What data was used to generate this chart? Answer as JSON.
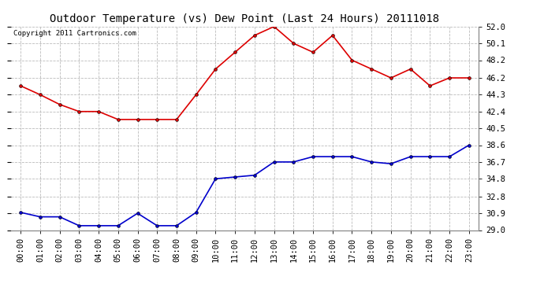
{
  "title": "Outdoor Temperature (vs) Dew Point (Last 24 Hours) 20111018",
  "copyright_text": "Copyright 2011 Cartronics.com",
  "x_labels": [
    "00:00",
    "01:00",
    "02:00",
    "03:00",
    "04:00",
    "05:00",
    "06:00",
    "07:00",
    "08:00",
    "09:00",
    "10:00",
    "11:00",
    "12:00",
    "13:00",
    "14:00",
    "15:00",
    "16:00",
    "17:00",
    "18:00",
    "19:00",
    "20:00",
    "21:00",
    "22:00",
    "23:00"
  ],
  "temp_data": [
    45.3,
    44.3,
    43.2,
    42.4,
    42.4,
    41.5,
    41.5,
    41.5,
    41.5,
    44.3,
    47.2,
    49.1,
    51.0,
    52.0,
    50.1,
    49.1,
    51.0,
    48.2,
    47.2,
    46.2,
    47.2,
    45.3,
    46.2,
    46.2
  ],
  "dew_data": [
    31.0,
    30.5,
    30.5,
    29.5,
    29.5,
    29.5,
    30.9,
    29.5,
    29.5,
    31.0,
    34.8,
    35.0,
    35.2,
    36.7,
    36.7,
    37.3,
    37.3,
    37.3,
    36.7,
    36.5,
    37.3,
    37.3,
    37.3,
    38.6
  ],
  "temp_color": "#dd0000",
  "dew_color": "#0000cc",
  "bg_color": "#ffffff",
  "plot_bg_color": "#ffffff",
  "grid_color": "#bbbbbb",
  "ylim": [
    29.0,
    52.0
  ],
  "yticks": [
    29.0,
    30.9,
    32.8,
    34.8,
    36.7,
    38.6,
    40.5,
    42.4,
    44.3,
    46.2,
    48.2,
    50.1,
    52.0
  ],
  "title_fontsize": 10,
  "copyright_fontsize": 6.5,
  "tick_fontsize": 7.5
}
